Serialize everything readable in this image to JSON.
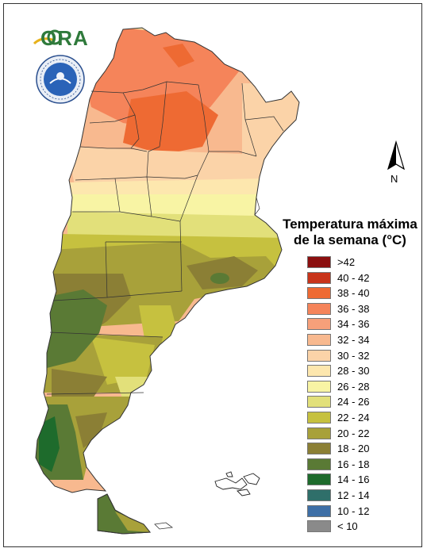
{
  "logo": {
    "text": "ORA",
    "brand_color": "#2f7a3b",
    "accent_color": "#e7b21b"
  },
  "seal": {
    "icon": "smn-seal-icon"
  },
  "north_arrow": {
    "label": "N"
  },
  "legend": {
    "title_line1": "Temperatura máxima",
    "title_line2": "de la semana (°C)",
    "items": [
      {
        "label": ">42",
        "color": "#8b0f0f"
      },
      {
        "label": "40 - 42",
        "color": "#c8341a"
      },
      {
        "label": "38 - 40",
        "color": "#ee6a33"
      },
      {
        "label": "36 - 38",
        "color": "#f5845a"
      },
      {
        "label": "34 - 36",
        "color": "#f7a07a"
      },
      {
        "label": "32 - 34",
        "color": "#f8b98f"
      },
      {
        "label": "30 - 32",
        "color": "#fbd3a8"
      },
      {
        "label": "28 - 30",
        "color": "#fde7ae"
      },
      {
        "label": "26 - 28",
        "color": "#f8f4a4"
      },
      {
        "label": "24 - 26",
        "color": "#e2e07a"
      },
      {
        "label": "22 - 24",
        "color": "#c6c13f"
      },
      {
        "label": "20 - 22",
        "color": "#a8a13a"
      },
      {
        "label": "18 - 20",
        "color": "#8b7f35"
      },
      {
        "label": "16 - 18",
        "color": "#5a7a35"
      },
      {
        "label": "14 - 16",
        "color": "#1e6b2c"
      },
      {
        "label": "12 - 14",
        "color": "#2f6f6a"
      },
      {
        "label": "10 - 12",
        "color": "#3e6fa6"
      },
      {
        "label": "< 10",
        "color": "#8a8a8a"
      }
    ]
  }
}
